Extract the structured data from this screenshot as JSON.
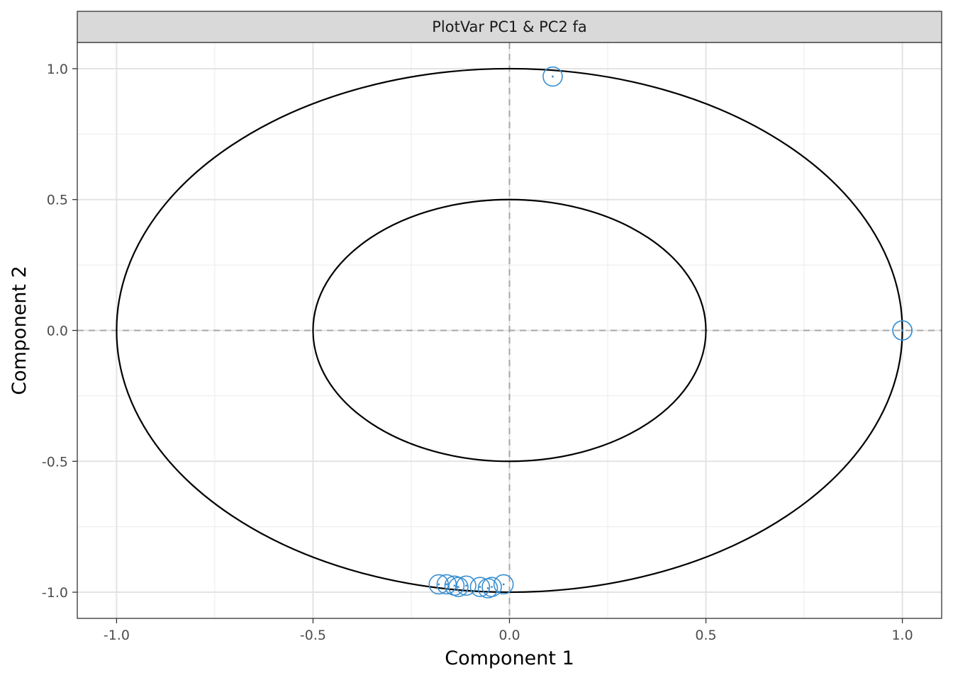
{
  "chart_data": {
    "type": "scatter",
    "panel_title": "PlotVar PC1 & PC2 fa",
    "xlabel": "Component  1",
    "ylabel": "Component  2",
    "xlim": [
      -1.1,
      1.1
    ],
    "ylim": [
      -1.1,
      1.1
    ],
    "x_ticks": [
      -1.0,
      -0.5,
      0.0,
      0.5,
      1.0
    ],
    "y_ticks": [
      -1.0,
      -0.5,
      0.0,
      0.5,
      1.0
    ],
    "x_tick_labels": [
      "-1.0",
      "-0.5",
      "0.0",
      "0.5",
      "1.0"
    ],
    "y_tick_labels": [
      "-1.0",
      "-0.5",
      "0.0",
      "0.5",
      "1.0"
    ],
    "grid": true,
    "reference_lines": {
      "x": 0,
      "y": 0,
      "style": "dashed"
    },
    "circles": [
      {
        "radius": 1.0
      },
      {
        "radius": 0.5
      }
    ],
    "points": [
      {
        "x": 0.11,
        "y": 0.97
      },
      {
        "x": 1.0,
        "y": 0.0
      },
      {
        "x": 1.0,
        "y": 0.0
      },
      {
        "x": -0.18,
        "y": -0.97
      },
      {
        "x": -0.16,
        "y": -0.97
      },
      {
        "x": -0.14,
        "y": -0.975
      },
      {
        "x": -0.13,
        "y": -0.98
      },
      {
        "x": -0.11,
        "y": -0.975
      },
      {
        "x": -0.075,
        "y": -0.98
      },
      {
        "x": -0.055,
        "y": -0.985
      },
      {
        "x": -0.045,
        "y": -0.98
      },
      {
        "x": -0.015,
        "y": -0.97
      }
    ],
    "point_color": "#3a8fd0",
    "circle_color": "#000000",
    "strip_color": "#d9d9d9"
  }
}
